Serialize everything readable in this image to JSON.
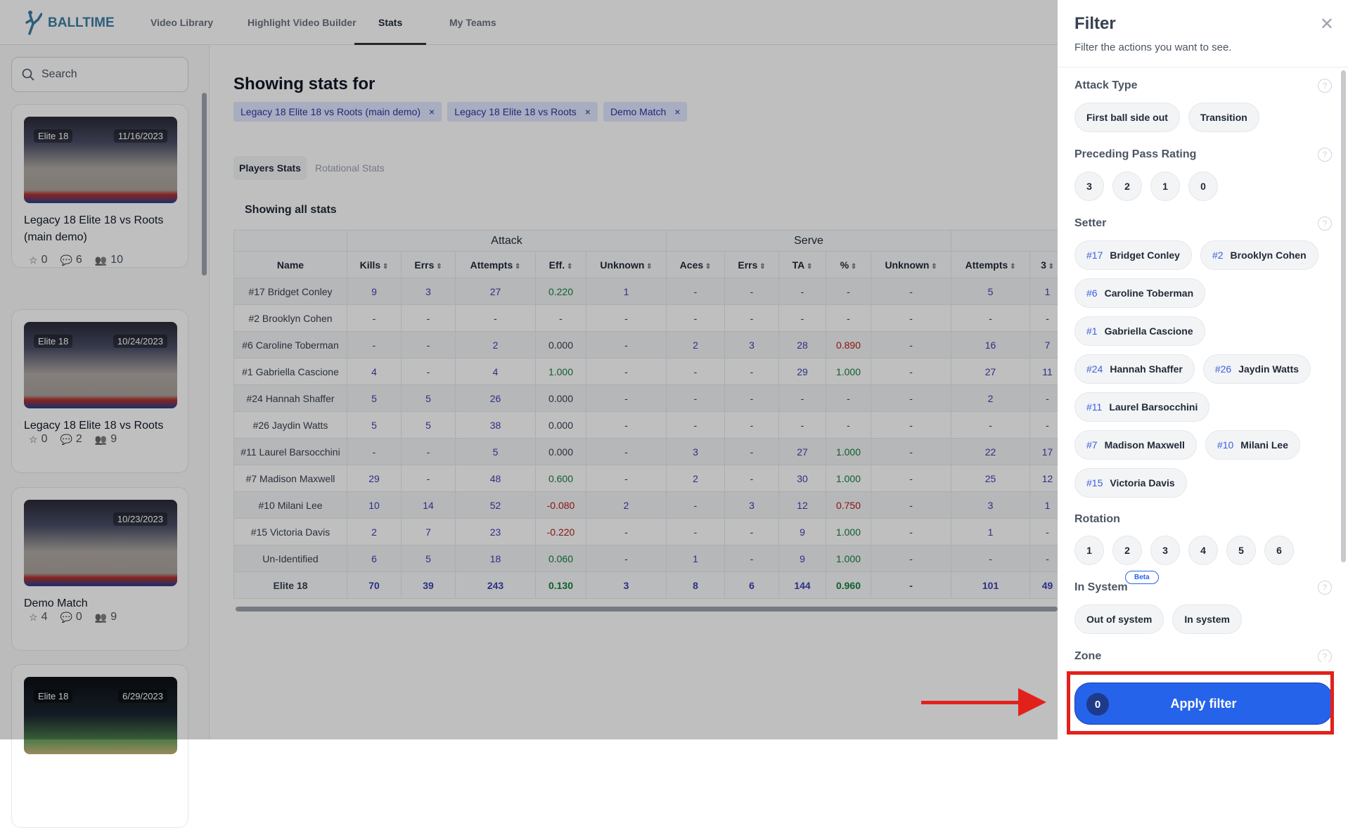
{
  "header": {
    "brand": "BALLTIME",
    "nav": [
      "Video Library",
      "Highlight Video Builder",
      "Stats",
      "My Teams"
    ],
    "active": "Stats"
  },
  "sidebar": {
    "search_placeholder": "Search",
    "cards": [
      {
        "team": "Elite 18",
        "date": "11/16/2023",
        "title": "Legacy 18 Elite 18 vs Roots (main demo)",
        "stars": "0",
        "comments": "6",
        "players": "10"
      },
      {
        "team": "Elite 18",
        "date": "10/24/2023",
        "title": "Legacy 18 Elite 18 vs Roots",
        "stars": "0",
        "comments": "2",
        "players": "9"
      },
      {
        "team": "",
        "date": "10/23/2023",
        "title": "Demo Match",
        "stars": "4",
        "comments": "0",
        "players": "9"
      },
      {
        "team": "Elite 18",
        "date": "6/29/2023"
      }
    ]
  },
  "main": {
    "title": "Showing stats for",
    "chips": [
      "Legacy 18 Elite 18 vs Roots (main demo)",
      "Legacy 18 Elite 18 vs Roots",
      "Demo Match"
    ],
    "tabs": [
      "Players Stats",
      "Rotational Stats"
    ],
    "subtitle": "Showing all stats",
    "groups": [
      {
        "label": "",
        "span": 1
      },
      {
        "label": "Attack",
        "span": 5
      },
      {
        "label": "Serve",
        "span": 5
      },
      {
        "label": "",
        "span": 2
      }
    ],
    "columns": [
      "Name",
      "Kills",
      "Errs",
      "Attempts",
      "Eff.",
      "Unknown",
      "Aces",
      "Errs",
      "TA",
      "%",
      "Unknown",
      "Attempts",
      "3"
    ],
    "rows": [
      [
        "#17 Bridget Conley",
        "9",
        "3",
        "27",
        "0.220",
        "1",
        "-",
        "-",
        "-",
        "-",
        "-",
        "5",
        "1"
      ],
      [
        "#2 Brooklyn Cohen",
        "-",
        "-",
        "-",
        "-",
        "-",
        "-",
        "-",
        "-",
        "-",
        "-",
        "-",
        "-"
      ],
      [
        "#6 Caroline Toberman",
        "-",
        "-",
        "2",
        "0.000",
        "-",
        "2",
        "3",
        "28",
        "0.890",
        "-",
        "16",
        "7"
      ],
      [
        "#1 Gabriella Cascione",
        "4",
        "-",
        "4",
        "1.000",
        "-",
        "-",
        "-",
        "29",
        "1.000",
        "-",
        "27",
        "11"
      ],
      [
        "#24 Hannah Shaffer",
        "5",
        "5",
        "26",
        "0.000",
        "-",
        "-",
        "-",
        "-",
        "-",
        "-",
        "2",
        "-"
      ],
      [
        "#26 Jaydin Watts",
        "5",
        "5",
        "38",
        "0.000",
        "-",
        "-",
        "-",
        "-",
        "-",
        "-",
        "-",
        "-"
      ],
      [
        "#11 Laurel Barsocchini",
        "-",
        "-",
        "5",
        "0.000",
        "-",
        "3",
        "-",
        "27",
        "1.000",
        "-",
        "22",
        "17"
      ],
      [
        "#7 Madison Maxwell",
        "29",
        "-",
        "48",
        "0.600",
        "-",
        "2",
        "-",
        "30",
        "1.000",
        "-",
        "25",
        "12"
      ],
      [
        "#10 Milani Lee",
        "10",
        "14",
        "52",
        "-0.080",
        "2",
        "-",
        "3",
        "12",
        "0.750",
        "-",
        "3",
        "1"
      ],
      [
        "#15 Victoria Davis",
        "2",
        "7",
        "23",
        "-0.220",
        "-",
        "-",
        "-",
        "9",
        "1.000",
        "-",
        "1",
        "-"
      ],
      [
        "Un-Identified",
        "6",
        "5",
        "18",
        "0.060",
        "-",
        "1",
        "-",
        "9",
        "1.000",
        "-",
        "-",
        "-"
      ],
      [
        "Elite 18",
        "70",
        "39",
        "243",
        "0.130",
        "3",
        "8",
        "6",
        "144",
        "0.960",
        "-",
        "101",
        "49"
      ]
    ]
  },
  "filter": {
    "title": "Filter",
    "subtitle": "Filter the actions you want to see.",
    "sections": [
      {
        "label": "Attack Type",
        "help": true,
        "options": [
          {
            "label": "First ball side out"
          },
          {
            "label": "Transition"
          }
        ]
      },
      {
        "label": "Preceding Pass Rating",
        "help": true,
        "num": true,
        "options": [
          {
            "label": "3"
          },
          {
            "label": "2"
          },
          {
            "label": "1"
          },
          {
            "label": "0"
          }
        ]
      },
      {
        "label": "Setter",
        "help": true,
        "options": [
          {
            "num": "#17",
            "label": "Bridget Conley"
          },
          {
            "num": "#2",
            "label": "Brooklyn Cohen"
          },
          {
            "num": "#6",
            "label": "Caroline Toberman"
          },
          {
            "num": "#1",
            "label": "Gabriella Cascione"
          },
          {
            "num": "#24",
            "label": "Hannah Shaffer"
          },
          {
            "num": "#26",
            "label": "Jaydin Watts"
          },
          {
            "num": "#11",
            "label": "Laurel Barsocchini"
          },
          {
            "num": "#7",
            "label": "Madison Maxwell"
          },
          {
            "num": "#10",
            "label": "Milani Lee"
          },
          {
            "num": "#15",
            "label": "Victoria Davis"
          }
        ]
      },
      {
        "label": "Rotation",
        "help": false,
        "num": true,
        "options": [
          {
            "label": "1"
          },
          {
            "label": "2"
          },
          {
            "label": "3"
          },
          {
            "label": "4"
          },
          {
            "label": "5"
          },
          {
            "label": "6"
          }
        ]
      },
      {
        "label": "In System",
        "badge": "Beta",
        "help": true,
        "options": [
          {
            "label": "Out of system"
          },
          {
            "label": "In system"
          }
        ]
      },
      {
        "label": "Zone",
        "help": true,
        "zone": true,
        "options": []
      }
    ],
    "apply_label": "Apply filter",
    "apply_count": "0"
  },
  "colors": {
    "accent": "#2563eb",
    "positive": "#15803d",
    "negative": "#b91c1c",
    "link": "#3b3fb5",
    "annotation": "#e3211b"
  }
}
